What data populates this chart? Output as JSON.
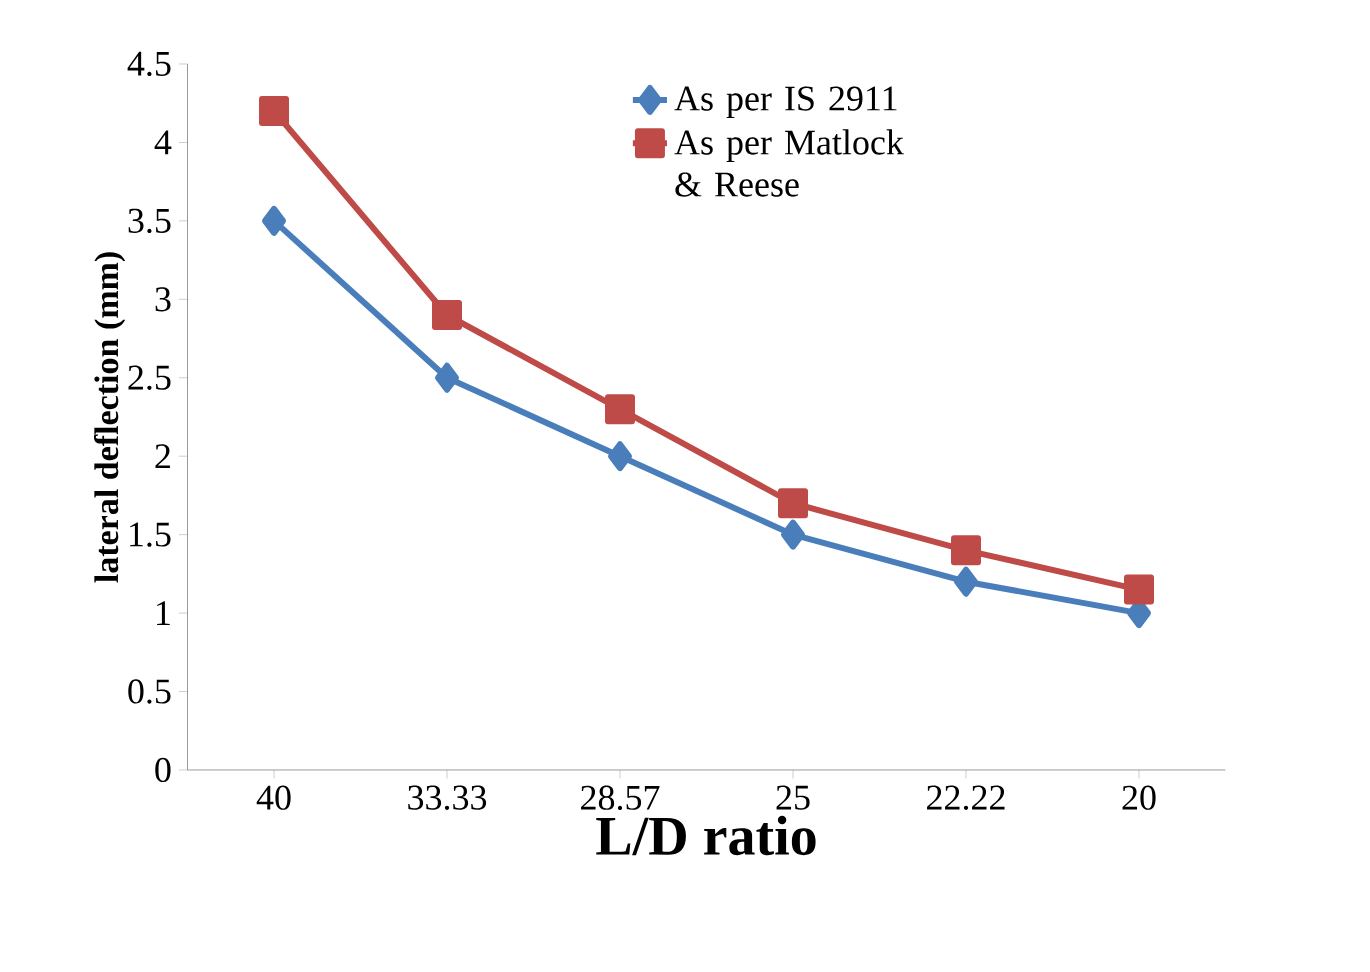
{
  "chart_data": {
    "type": "line",
    "xlabel": "L/D ratio",
    "ylabel": "lateral deflection (mm)",
    "categories": [
      "40",
      "33.33",
      "28.57",
      "25",
      "22.22",
      "20"
    ],
    "series": [
      {
        "name": "As per IS 2911",
        "color": "#4a7ebb",
        "marker": "diamond",
        "values": [
          3.5,
          2.5,
          2.0,
          1.5,
          1.2,
          1.0
        ]
      },
      {
        "name": "As per Matlock & Reese",
        "color": "#be4b48",
        "marker": "square",
        "values": [
          4.2,
          2.9,
          2.3,
          1.7,
          1.4,
          1.15
        ]
      }
    ],
    "ylim": [
      0,
      4.5
    ],
    "yticks": [
      0,
      0.5,
      1,
      1.5,
      2,
      2.5,
      3,
      3.5,
      4,
      4.5
    ],
    "legend": "top right"
  }
}
